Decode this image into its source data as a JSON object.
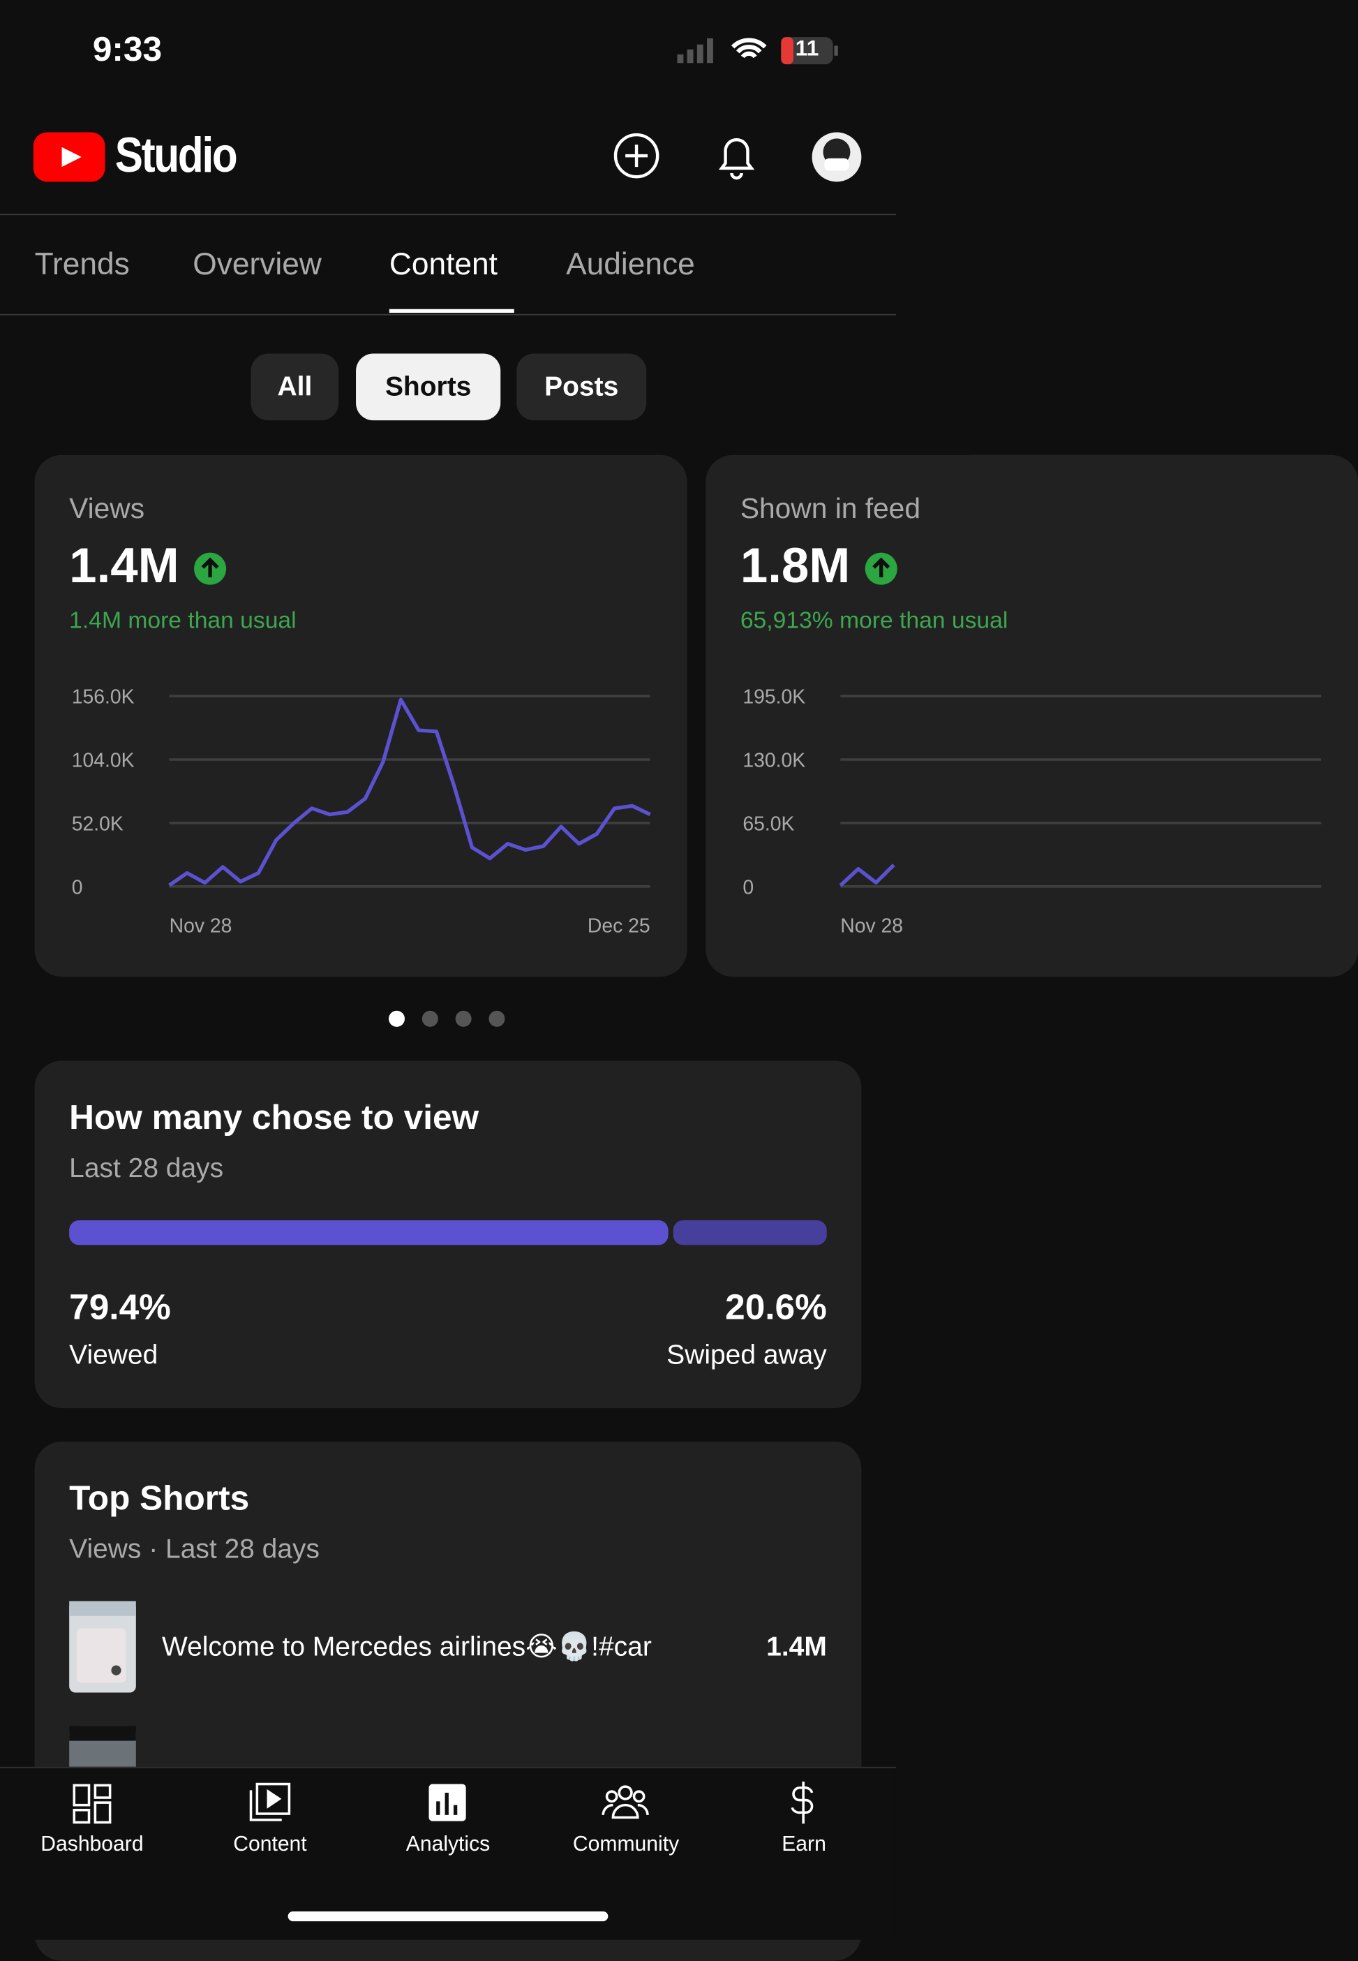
{
  "status_bar": {
    "time": "9:33",
    "battery": "11"
  },
  "header": {
    "title": "Studio"
  },
  "tabs": [
    "Trends",
    "Overview",
    "Content",
    "Audience"
  ],
  "filters": [
    "All",
    "Shorts",
    "Posts"
  ],
  "metric_cards": [
    {
      "label": "Views",
      "value": "1.4M",
      "note": "1.4M more than usual",
      "chart_data": {
        "type": "line",
        "color": "#5c52d1",
        "categories": [
          "Nov 28",
          null,
          null,
          null,
          null,
          null,
          null,
          null,
          null,
          null,
          null,
          null,
          null,
          null,
          null,
          null,
          null,
          null,
          null,
          null,
          null,
          null,
          null,
          null,
          null,
          null,
          null,
          "Dec 25"
        ],
        "values": [
          1000,
          11000,
          3000,
          16000,
          4000,
          11000,
          38000,
          52000,
          64000,
          59000,
          61000,
          72000,
          102000,
          153000,
          128000,
          127000,
          82000,
          32000,
          23000,
          35000,
          30000,
          33000,
          49000,
          35000,
          43000,
          64000,
          66000,
          59000
        ],
        "ylim": [
          0,
          156000
        ],
        "yticks": [
          0,
          {
            "value": 52000,
            "label": "52.0K"
          },
          {
            "value": 104000,
            "label": "104.0K"
          },
          {
            "value": 156000,
            "label": "156.0K"
          }
        ],
        "grid": true
      }
    },
    {
      "label": "Shown in feed",
      "value": "1.8M",
      "note": "65,913% more than usual",
      "chart_data": {
        "type": "line",
        "color": "#5c52d1",
        "categories": [
          "Nov 28",
          null,
          null,
          null
        ],
        "values": [
          1000,
          18000,
          4000,
          22000
        ],
        "ylim": [
          0,
          195000
        ],
        "yticks": [
          0,
          {
            "value": 65000,
            "label": "65.0K"
          },
          {
            "value": 130000,
            "label": "130.0K"
          },
          {
            "value": 195000,
            "label": "195.0K"
          }
        ],
        "grid": true
      }
    }
  ],
  "chose_to_view": {
    "title": "How many chose to view",
    "subtitle": "Last 28 days",
    "chart_data": {
      "type": "stacked-bar",
      "categories": [
        "Viewed",
        "Swiped away"
      ],
      "values": [
        79.4,
        20.6
      ],
      "value_labels": [
        "79.4%",
        "20.6%"
      ],
      "colors": [
        "#5c52d1",
        "#463f9c"
      ],
      "xlim": [
        0,
        100
      ]
    }
  },
  "top_shorts": {
    "title": "Top Shorts",
    "subtitle": "Views · Last 28 days",
    "rows": [
      {
        "title": "Welcome to Mercedes airlines😭💀!#car",
        "views": "1.4M"
      }
    ]
  },
  "bottom_nav": [
    "Dashboard",
    "Content",
    "Analytics",
    "Community",
    "Earn"
  ]
}
